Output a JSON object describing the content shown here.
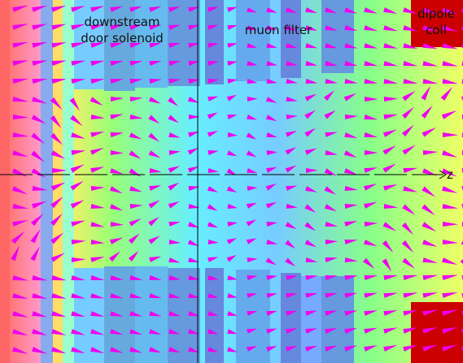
{
  "labels": {
    "solenoid": [
      "downstream",
      "door solenoid"
    ],
    "filter": "muon filter",
    "coil": [
      "dipole",
      "coil"
    ],
    "axis": "z"
  }
}
